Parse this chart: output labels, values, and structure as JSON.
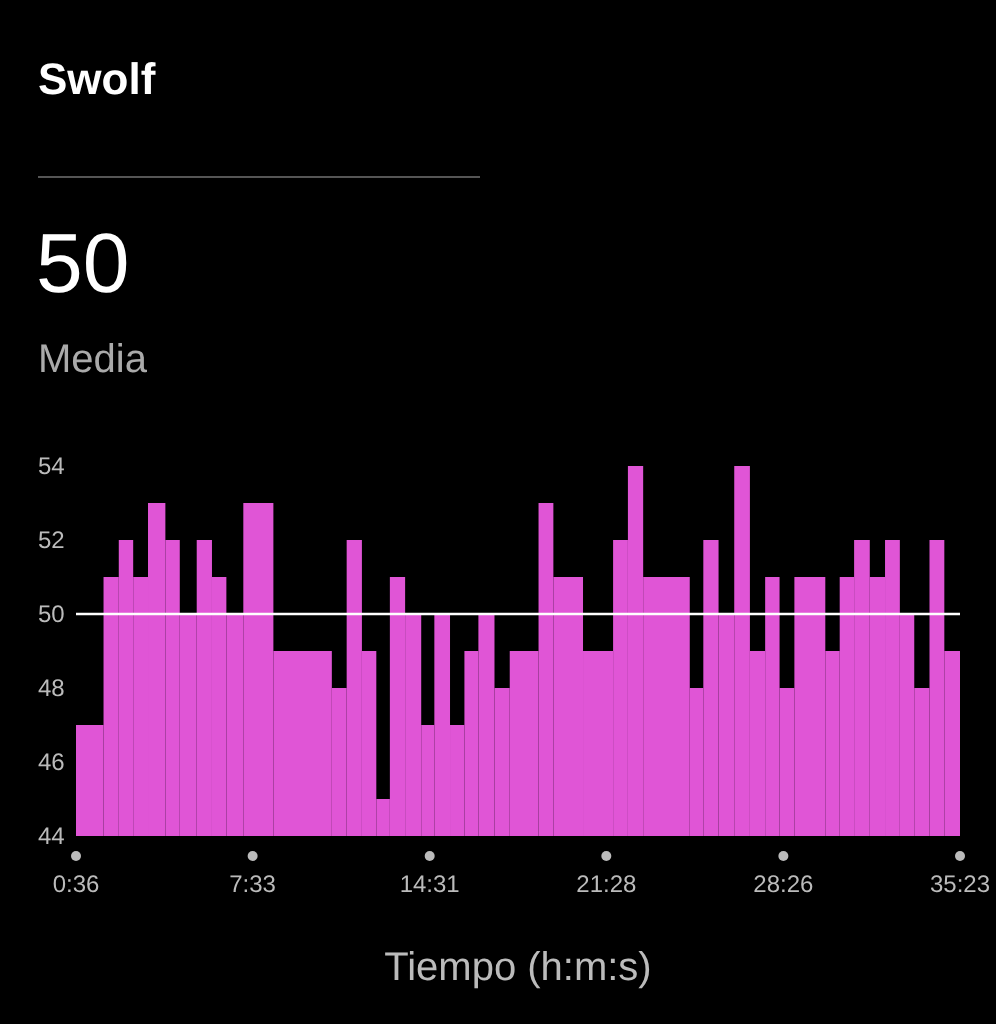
{
  "chart_data": {
    "type": "histogram",
    "title": "Swolf",
    "subtitle": "50",
    "annotations": [
      "Media"
    ],
    "xlabel": "Tiempo (h:m:s)",
    "bins": [
      36,
      101,
      137,
      171,
      206,
      247,
      281,
      321,
      357,
      391,
      431,
      502,
      640,
      675,
      711,
      745,
      777,
      813,
      851,
      882,
      919,
      953,
      986,
      1024,
      1060,
      1128,
      1163,
      1233,
      1304,
      1339,
      1375,
      1485,
      1517,
      1553,
      1590,
      1627,
      1663,
      1697,
      1732,
      1805,
      1839,
      1873,
      1910,
      1946,
      1981,
      2015,
      2051,
      2086,
      2123
    ],
    "values": [
      47,
      51,
      52,
      51,
      53,
      52,
      50,
      52,
      51,
      50,
      53,
      49,
      48,
      52,
      49,
      45,
      51,
      50,
      47,
      50,
      47,
      49,
      50,
      48,
      49,
      53,
      51,
      49,
      52,
      54,
      51,
      48,
      52,
      50,
      54,
      49,
      51,
      48,
      51,
      49,
      51,
      52,
      51,
      52,
      50,
      48,
      52,
      49
    ],
    "color": "#e055d6",
    "xlim": [
      36,
      2123
    ],
    "xticks": [
      {
        "value": 36,
        "label": "0:36"
      },
      {
        "value": 453,
        "label": "7:33"
      },
      {
        "value": 871,
        "label": "14:31"
      },
      {
        "value": 1288,
        "label": "21:28"
      },
      {
        "value": 1706,
        "label": "28:26"
      },
      {
        "value": 2123,
        "label": "35:23"
      }
    ],
    "ylim": [
      44,
      54
    ],
    "yticks": [
      44,
      46,
      48,
      50,
      52,
      54
    ],
    "ref_lines": [
      {
        "axis": "y",
        "value": 50,
        "color": "#ffffff"
      }
    ],
    "grid": false
  }
}
